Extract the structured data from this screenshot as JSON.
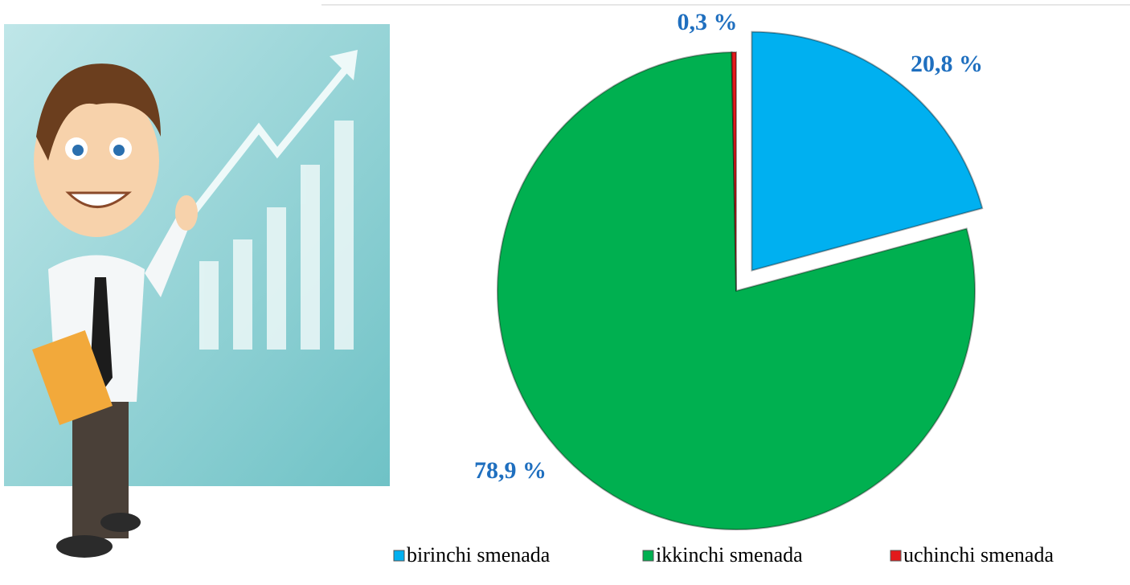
{
  "chart_data": {
    "type": "pie",
    "categories": [
      "birinchi smenada",
      "ikkinchi smenada",
      "uchinchi smenada"
    ],
    "values": [
      20.8,
      78.9,
      0.3
    ],
    "value_labels": [
      "20,8 %",
      "78,9 %",
      "0,3 %"
    ],
    "colors": [
      "#00b0f0",
      "#00b050",
      "#e31a1c"
    ],
    "legend": "bottom"
  }
}
